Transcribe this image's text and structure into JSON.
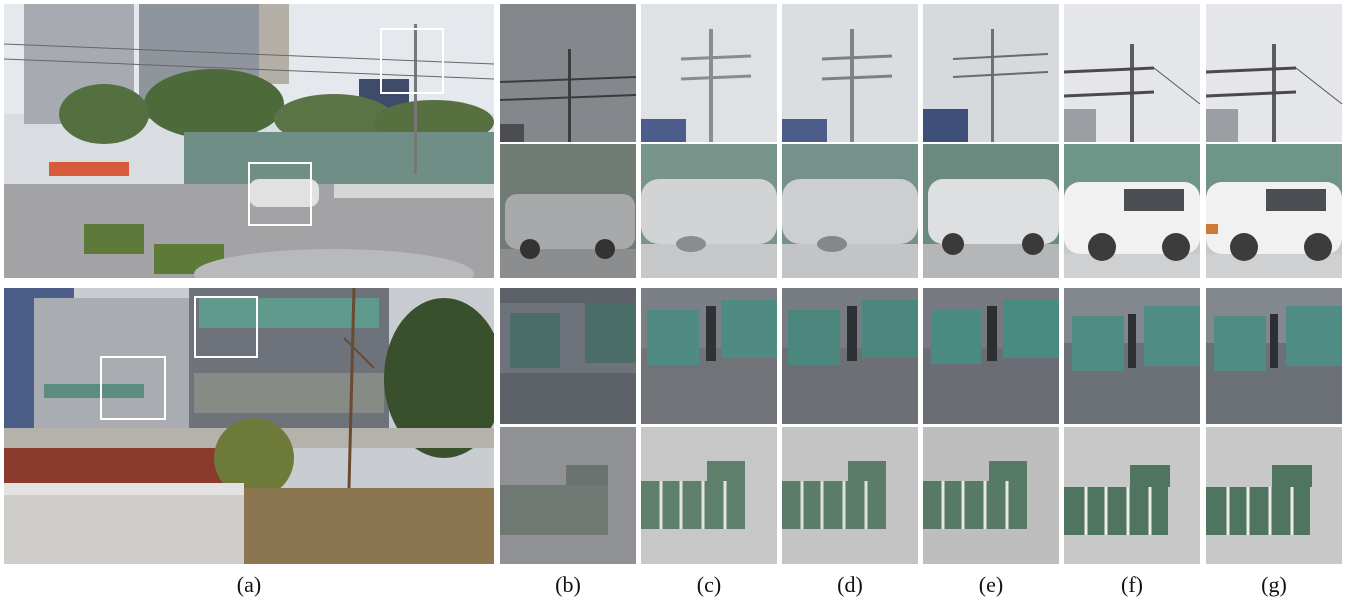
{
  "figure": {
    "captions": [
      {
        "id": "a",
        "text": "(a)"
      },
      {
        "id": "b",
        "text": "(b)"
      },
      {
        "id": "c",
        "text": "(c)"
      },
      {
        "id": "d",
        "text": "(d)"
      },
      {
        "id": "e",
        "text": "(e)"
      },
      {
        "id": "f",
        "text": "(f)"
      },
      {
        "id": "g",
        "text": "(g)"
      }
    ],
    "colors": {
      "sky": "#dfe3e8",
      "building": "#7a8088",
      "glass": "#4f8b80",
      "wall": "#c7c9cb",
      "car": "#dcdcdc",
      "road": "#9a9a9c",
      "tree": "#4f6b35",
      "roi_box": "#ffffff"
    }
  }
}
